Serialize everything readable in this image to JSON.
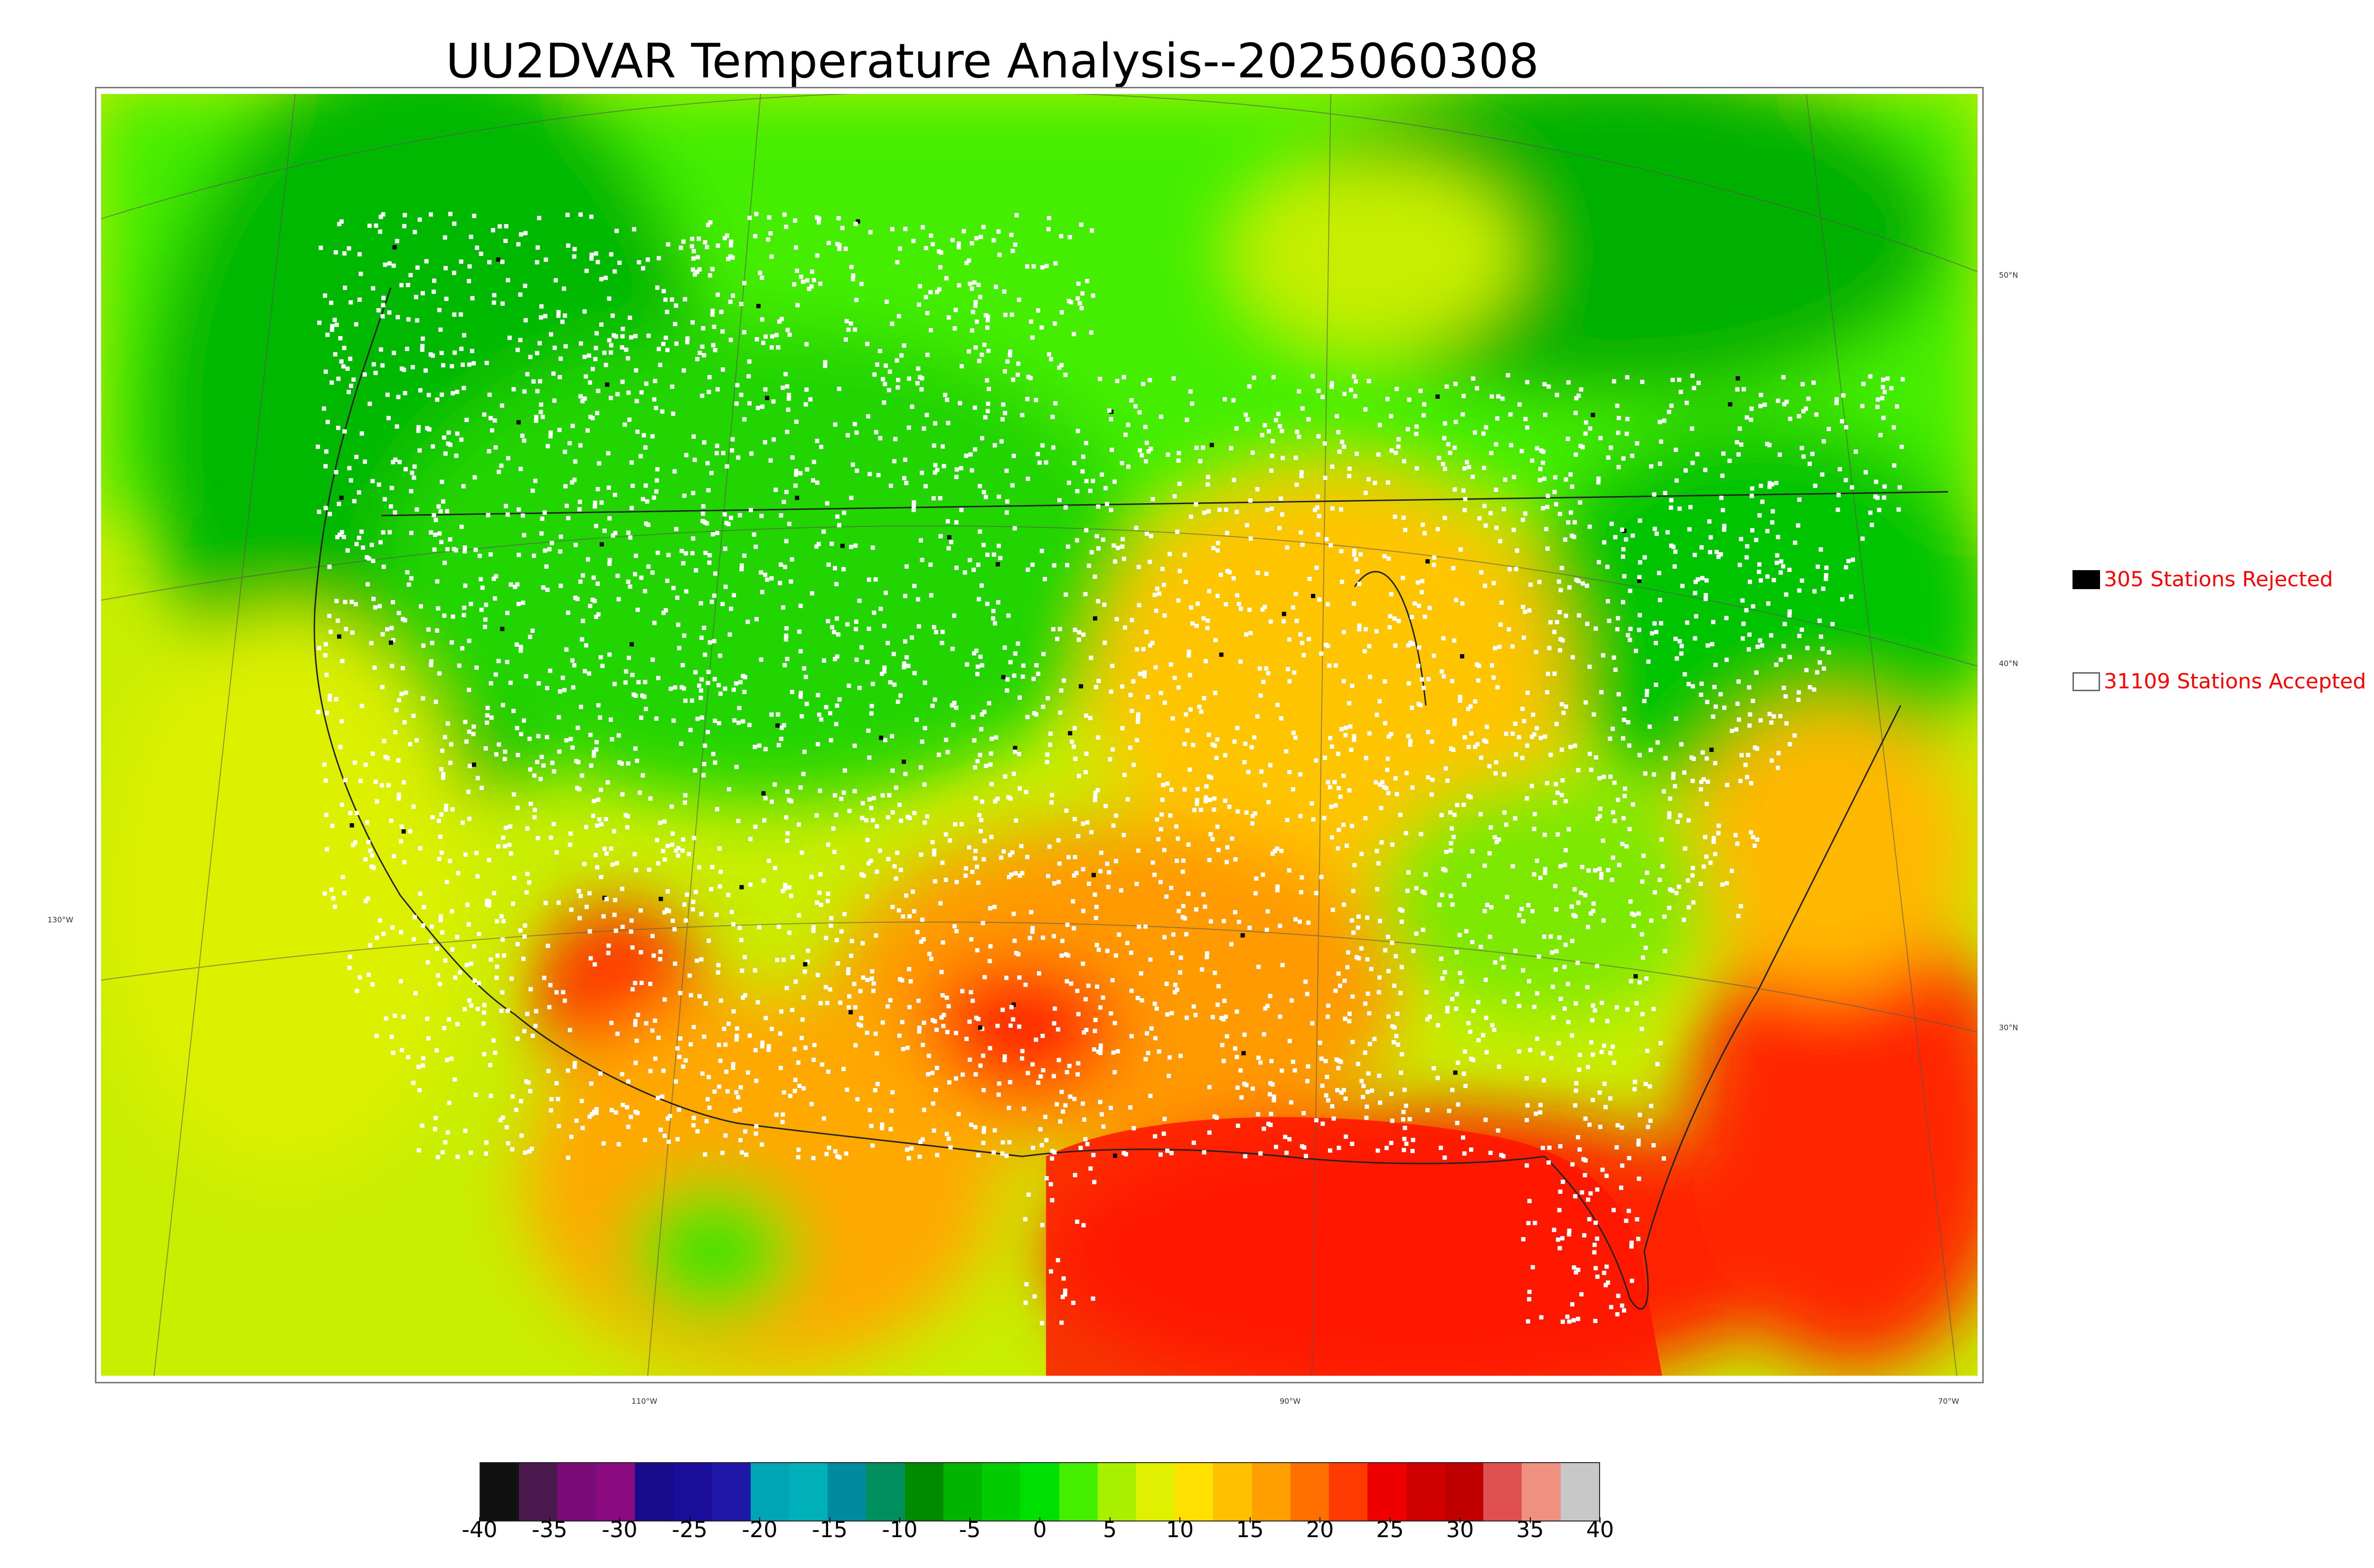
{
  "title": "UU2DVAR Temperature Analysis--2025060308",
  "map": {
    "longitude_labels": [
      "130°W",
      "110°W",
      "90°W",
      "70°W"
    ],
    "latitude_labels": [
      "50°N",
      "40°N",
      "30°N"
    ]
  },
  "legend": {
    "rejected_text": "305 Stations Rejected",
    "accepted_text": "31109 Stations Accepted",
    "rejected_color": "#000000",
    "accepted_color": "#ffffff"
  },
  "colorbar": {
    "labels": [
      "-40",
      "-35",
      "-30",
      "-25",
      "-20",
      "-15",
      "-10",
      "-5",
      "0",
      "5",
      "10",
      "15",
      "20",
      "25",
      "30",
      "35",
      "40"
    ],
    "range": [
      -40,
      40
    ],
    "colors": [
      "#111111",
      "#4a1a4f",
      "#7a0c78",
      "#8a0b80",
      "#1a0a8c",
      "#1a0d9a",
      "#1f17a8",
      "#00a5b5",
      "#00b0b8",
      "#008aa0",
      "#009060",
      "#008a00",
      "#00b400",
      "#00cc00",
      "#00e000",
      "#44f000",
      "#a8f000",
      "#e0f000",
      "#ffe000",
      "#ffc000",
      "#ffa000",
      "#ff7000",
      "#ff3a00",
      "#ee0000",
      "#d00000",
      "#c00000",
      "#e05050",
      "#f09080",
      "#c8c8c8"
    ]
  },
  "palette": {
    "cold": "#00aa00",
    "cool": "#44ee00",
    "mild": "#dfee00",
    "warm": "#ffb000",
    "hot": "#ff2a00",
    "very_hot": "#e00000",
    "station_accepted": "#ffffff",
    "station_rejected": "#000000"
  }
}
